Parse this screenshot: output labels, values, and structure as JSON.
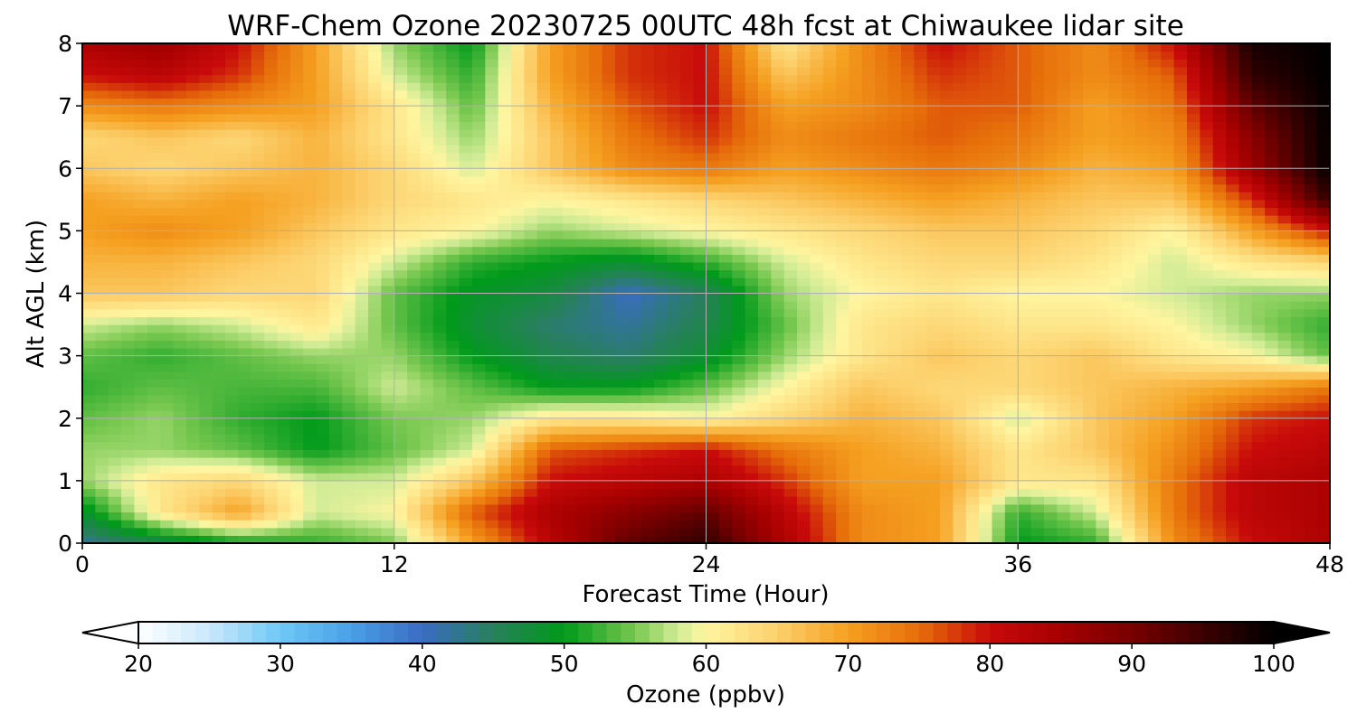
{
  "chart_data": {
    "type": "heatmap",
    "title": "WRF-Chem Ozone  20230725 00UTC 48h fcst at Chiwaukee lidar site",
    "xlabel": "Forecast Time (Hour)",
    "ylabel": "Alt AGL (km)",
    "xlim": [
      0,
      48
    ],
    "ylim": [
      0,
      8
    ],
    "xticks": [
      0,
      12,
      24,
      36,
      48
    ],
    "yticks": [
      0,
      1,
      2,
      3,
      4,
      5,
      6,
      7,
      8
    ],
    "grid": true,
    "x": [
      0,
      3,
      6,
      9,
      12,
      15,
      18,
      21,
      24,
      27,
      30,
      33,
      36,
      39,
      42,
      45,
      48
    ],
    "y": [
      0,
      0.5,
      1,
      1.5,
      2,
      2.5,
      3,
      3.5,
      4,
      4.5,
      5,
      5.5,
      6,
      6.5,
      7,
      7.5,
      8
    ],
    "z": [
      [
        42,
        46,
        50,
        52,
        55,
        70,
        82,
        92,
        96,
        84,
        72,
        70,
        50,
        52,
        72,
        80,
        84
      ],
      [
        48,
        62,
        70,
        58,
        60,
        76,
        84,
        88,
        92,
        82,
        72,
        70,
        52,
        58,
        74,
        82,
        84
      ],
      [
        56,
        62,
        64,
        58,
        58,
        66,
        80,
        82,
        84,
        78,
        70,
        70,
        62,
        62,
        74,
        82,
        84
      ],
      [
        56,
        56,
        54,
        50,
        54,
        58,
        76,
        78,
        80,
        74,
        70,
        68,
        62,
        66,
        72,
        80,
        82
      ],
      [
        54,
        56,
        52,
        50,
        55,
        56,
        62,
        62,
        60,
        64,
        68,
        66,
        58,
        66,
        70,
        78,
        80
      ],
      [
        52,
        54,
        53,
        53,
        58,
        54,
        50,
        50,
        54,
        60,
        66,
        64,
        64,
        66,
        68,
        70,
        74
      ],
      [
        54,
        52,
        54,
        56,
        56,
        50,
        46,
        44,
        48,
        56,
        62,
        66,
        64,
        66,
        62,
        60,
        54
      ],
      [
        58,
        56,
        58,
        62,
        54,
        48,
        44,
        42,
        46,
        54,
        62,
        64,
        62,
        62,
        60,
        56,
        52
      ],
      [
        66,
        66,
        64,
        64,
        54,
        49,
        47,
        40,
        45,
        56,
        60,
        62,
        60,
        60,
        58,
        56,
        56
      ],
      [
        68,
        68,
        66,
        64,
        58,
        52,
        50,
        48,
        52,
        58,
        62,
        64,
        64,
        62,
        58,
        62,
        64
      ],
      [
        70,
        72,
        70,
        66,
        62,
        60,
        56,
        58,
        60,
        62,
        64,
        66,
        66,
        64,
        60,
        70,
        80
      ],
      [
        70,
        68,
        70,
        68,
        64,
        62,
        60,
        62,
        64,
        66,
        68,
        70,
        68,
        66,
        66,
        78,
        96
      ],
      [
        66,
        64,
        66,
        68,
        64,
        58,
        66,
        72,
        74,
        70,
        72,
        74,
        72,
        68,
        70,
        86,
        100
      ],
      [
        64,
        66,
        64,
        68,
        62,
        56,
        66,
        74,
        78,
        72,
        74,
        76,
        74,
        70,
        72,
        88,
        100
      ],
      [
        72,
        74,
        72,
        70,
        62,
        54,
        68,
        76,
        80,
        70,
        72,
        76,
        76,
        70,
        74,
        92,
        100
      ],
      [
        80,
        82,
        78,
        70,
        58,
        52,
        70,
        78,
        80,
        66,
        72,
        78,
        76,
        72,
        76,
        96,
        100
      ],
      [
        84,
        86,
        80,
        70,
        56,
        50,
        70,
        78,
        80,
        62,
        72,
        80,
        76,
        72,
        80,
        98,
        100
      ]
    ],
    "levels": [
      20,
      100
    ],
    "colorbar": {
      "label": "Ozone  (ppbv)",
      "ticks": [
        20,
        30,
        40,
        50,
        60,
        70,
        80,
        90,
        100
      ],
      "extend": "both",
      "colormap": [
        [
          20,
          "#ffffff"
        ],
        [
          25,
          "#c9e8fa"
        ],
        [
          30,
          "#6ec8f5"
        ],
        [
          35,
          "#4aa0e6"
        ],
        [
          40,
          "#3a6cc4"
        ],
        [
          45,
          "#27805a"
        ],
        [
          50,
          "#009a1a"
        ],
        [
          55,
          "#78c850"
        ],
        [
          58,
          "#d2ec96"
        ],
        [
          60,
          "#fff5a0"
        ],
        [
          65,
          "#fcd06c"
        ],
        [
          70,
          "#f5a020"
        ],
        [
          75,
          "#e66e0a"
        ],
        [
          80,
          "#c80a0a"
        ],
        [
          85,
          "#a60000"
        ],
        [
          90,
          "#780000"
        ],
        [
          95,
          "#3c0000"
        ],
        [
          100,
          "#000000"
        ]
      ]
    }
  }
}
